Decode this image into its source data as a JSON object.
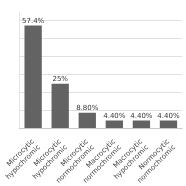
{
  "chart_data": {
    "type": "bar",
    "categories": [
      "Microcytic\nhypochromic",
      "Microcytic\nhypochromic",
      "Microcytic\nnormochromic",
      "Macrocytic\nnormochromic",
      "Macrocytic\nhypochromic",
      "Normocytic\nnormochromic"
    ],
    "values": [
      57.4,
      25.0,
      8.8,
      4.4,
      4.4,
      4.4
    ],
    "value_labels": [
      "57.4%",
      "25%",
      "8.80%",
      "4.40%",
      "4.40%",
      "4.40%"
    ],
    "color": "#636363",
    "ylim": [
      0,
      65
    ],
    "yticks": [
      0,
      10,
      20,
      30,
      40,
      50,
      60
    ],
    "grid": true,
    "data_labels": true,
    "tick_labels": "x"
  }
}
